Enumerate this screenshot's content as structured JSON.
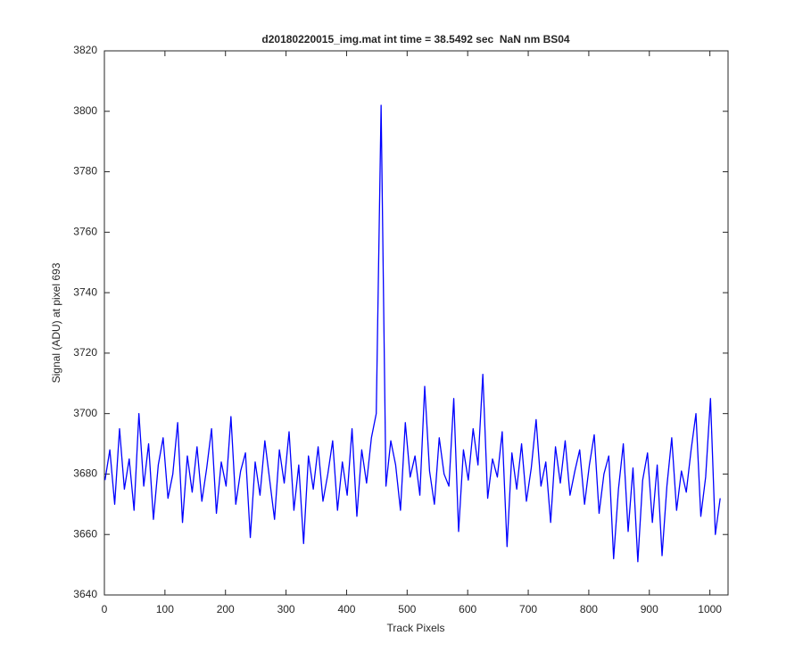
{
  "chart_data": {
    "type": "line",
    "title": "d20180220015_img.mat int time = 38.5492 sec  NaN nm BS04",
    "x_label": "Track Pixels",
    "y_label": "Signal (ADU) at pixel 693",
    "xlim": [
      0,
      1030
    ],
    "ylim": [
      3640,
      3820
    ],
    "xticks": [
      0,
      100,
      200,
      300,
      400,
      500,
      600,
      700,
      800,
      900,
      1000
    ],
    "yticks": [
      3640,
      3660,
      3680,
      3700,
      3720,
      3740,
      3760,
      3780,
      3800,
      3820
    ],
    "grid": false,
    "x": [
      1,
      9,
      17,
      25,
      33,
      41,
      49,
      57,
      65,
      73,
      81,
      89,
      97,
      105,
      113,
      121,
      129,
      137,
      145,
      153,
      161,
      169,
      177,
      185,
      193,
      201,
      209,
      217,
      225,
      233,
      241,
      249,
      257,
      265,
      273,
      281,
      289,
      297,
      305,
      313,
      321,
      329,
      337,
      345,
      353,
      361,
      369,
      377,
      385,
      393,
      401,
      409,
      417,
      425,
      433,
      441,
      449,
      457,
      465,
      473,
      481,
      489,
      497,
      505,
      513,
      521,
      529,
      537,
      545,
      553,
      561,
      569,
      577,
      585,
      593,
      601,
      609,
      617,
      625,
      633,
      641,
      649,
      657,
      665,
      673,
      681,
      689,
      697,
      705,
      713,
      721,
      729,
      737,
      745,
      753,
      761,
      769,
      777,
      785,
      793,
      801,
      809,
      817,
      825,
      833,
      841,
      849,
      857,
      865,
      873,
      881,
      889,
      897,
      905,
      913,
      921,
      929,
      937,
      945,
      953,
      961,
      969,
      977,
      985,
      993,
      1001,
      1009,
      1017
    ],
    "series": [
      {
        "color": "#0000ff",
        "values": [
          3678,
          3688,
          3670,
          3695,
          3675,
          3685,
          3668,
          3700,
          3676,
          3690,
          3665,
          3683,
          3692,
          3672,
          3680,
          3697,
          3664,
          3686,
          3674,
          3689,
          3671,
          3682,
          3695,
          3667,
          3684,
          3676,
          3699,
          3670,
          3681,
          3687,
          3659,
          3684,
          3673,
          3691,
          3678,
          3665,
          3688,
          3677,
          3694,
          3668,
          3683,
          3657,
          3686,
          3675,
          3689,
          3671,
          3680,
          3691,
          3668,
          3684,
          3673,
          3695,
          3666,
          3688,
          3677,
          3692,
          3700,
          3802,
          3676,
          3691,
          3683,
          3668,
          3697,
          3679,
          3686,
          3673,
          3709,
          3681,
          3670,
          3692,
          3680,
          3676,
          3705,
          3661,
          3688,
          3678,
          3695,
          3683,
          3713,
          3672,
          3685,
          3679,
          3694,
          3656,
          3687,
          3675,
          3690,
          3671,
          3682,
          3698,
          3676,
          3684,
          3664,
          3689,
          3677,
          3691,
          3673,
          3681,
          3688,
          3670,
          3683,
          3693,
          3667,
          3680,
          3686,
          3652,
          3675,
          3690,
          3661,
          3682,
          3651,
          3678,
          3687,
          3664,
          3683,
          3653,
          3676,
          3692,
          3668,
          3681,
          3674,
          3688,
          3700,
          3666,
          3679,
          3705,
          3660,
          3672
        ]
      }
    ]
  }
}
